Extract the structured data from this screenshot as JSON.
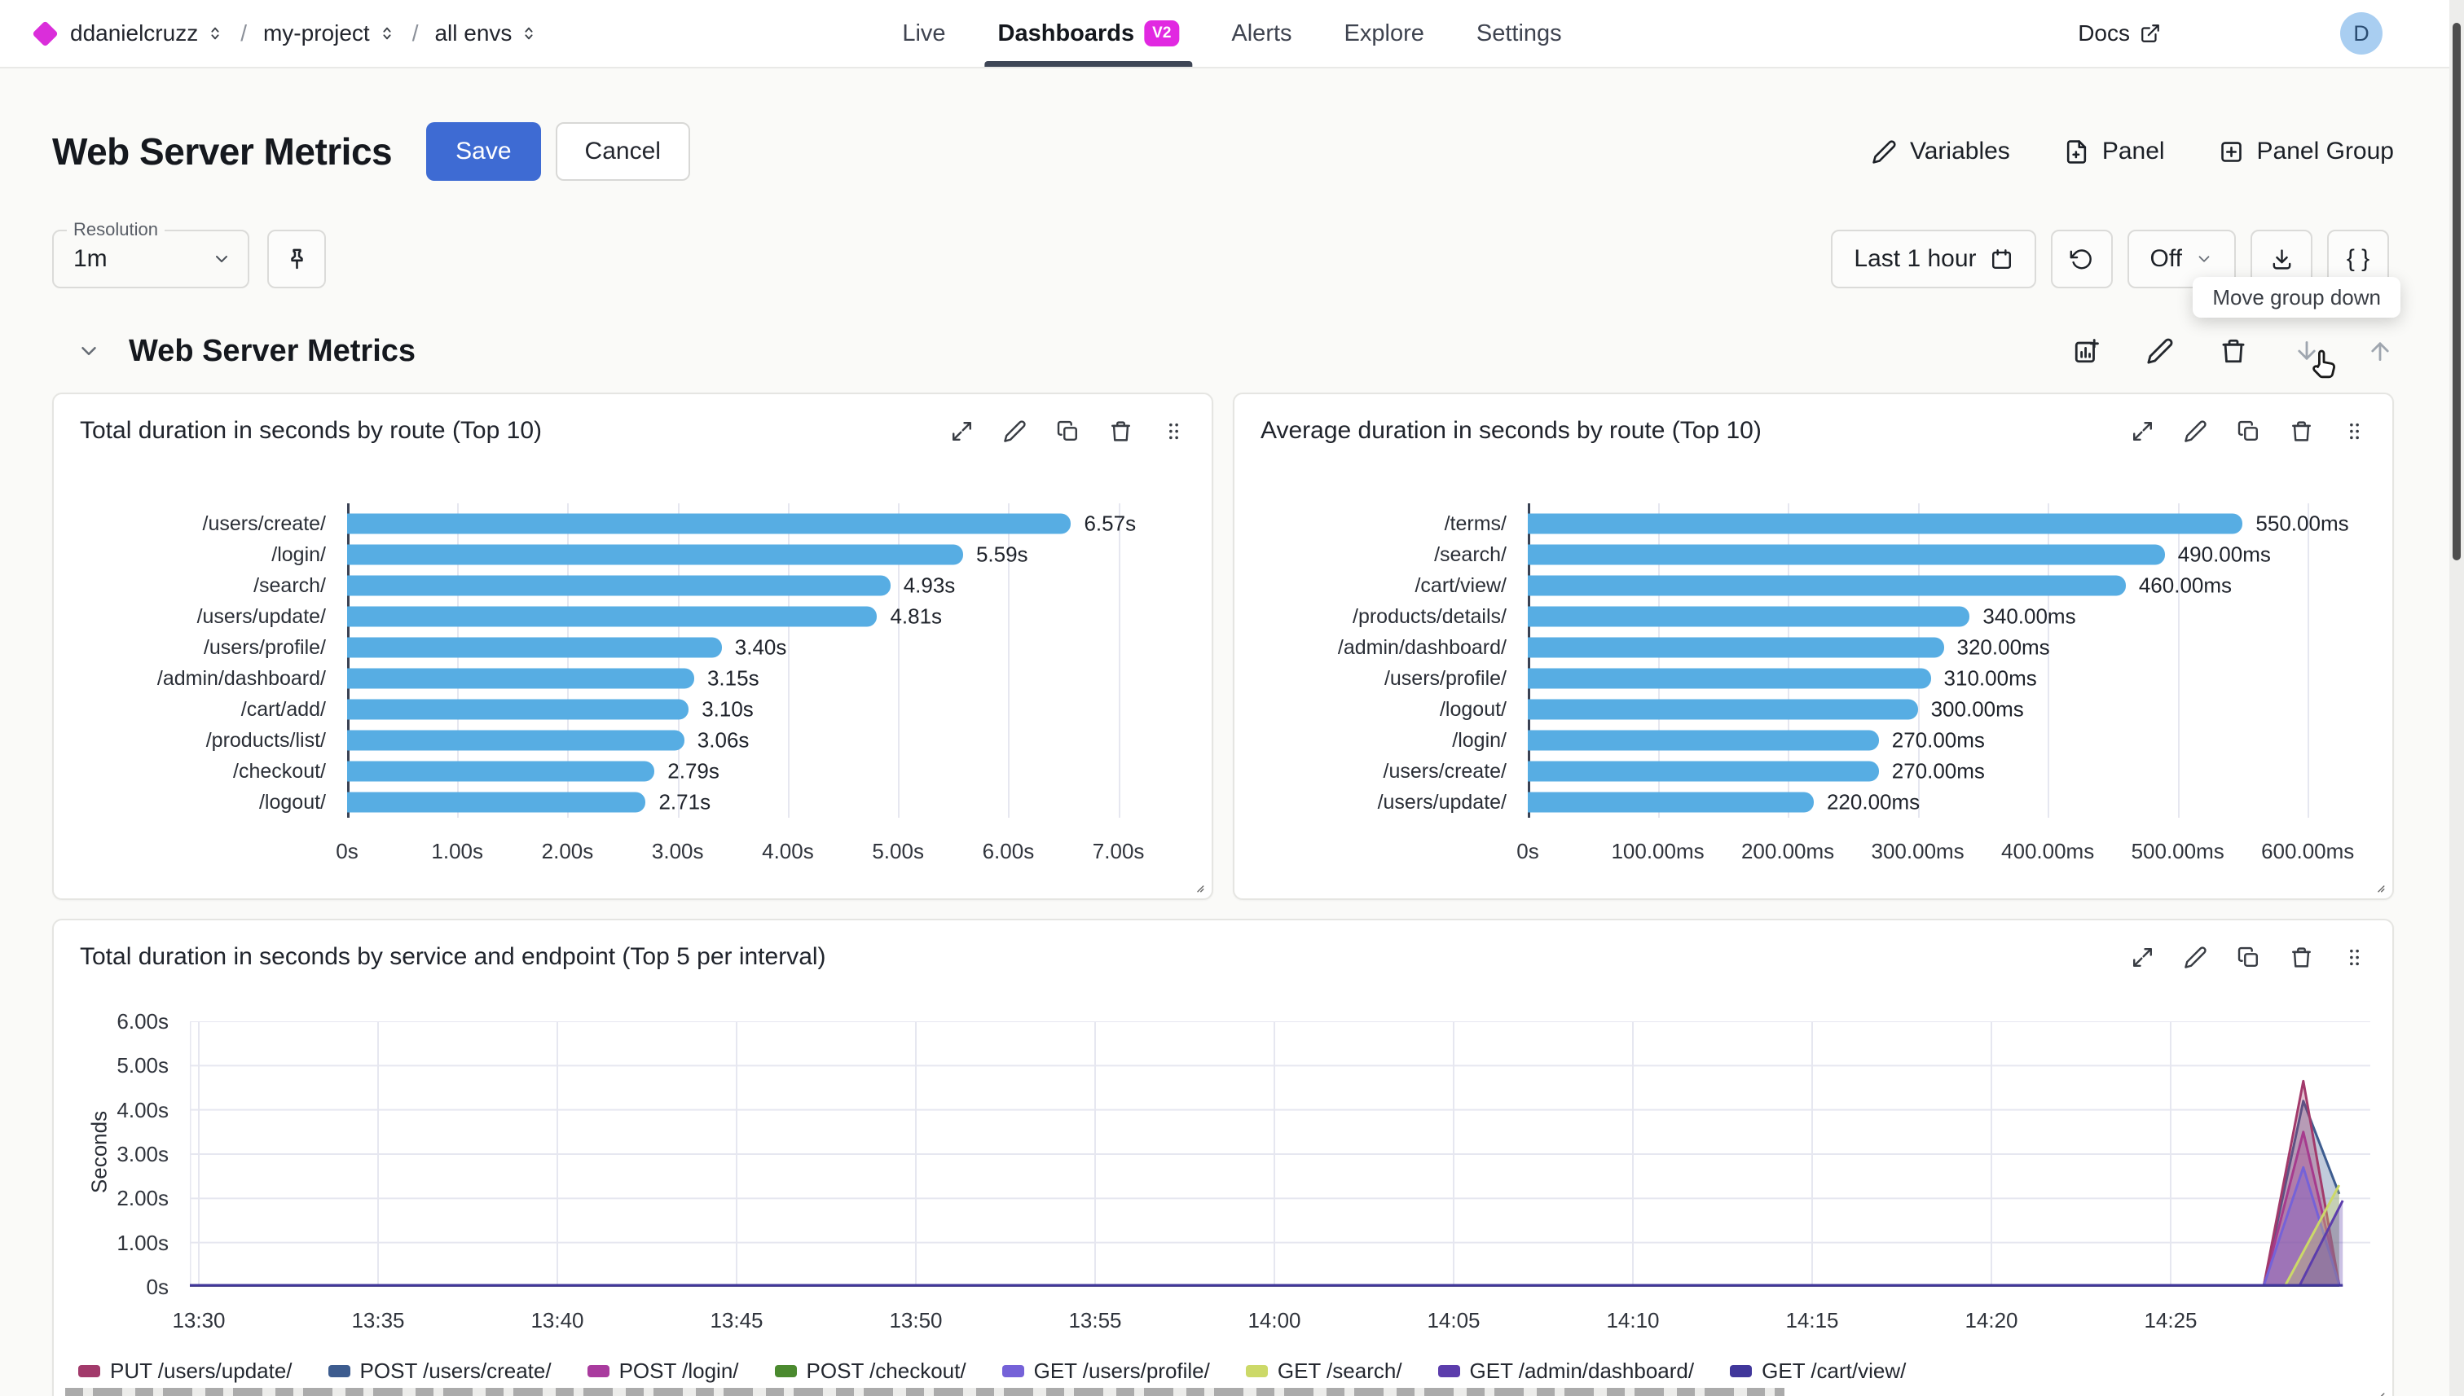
{
  "header": {
    "breadcrumbs": [
      {
        "label": "ddanielcruzz"
      },
      {
        "label": "my-project"
      },
      {
        "label": "all envs"
      }
    ],
    "nav": [
      {
        "label": "Live",
        "active": false
      },
      {
        "label": "Dashboards",
        "active": true,
        "badge": "V2"
      },
      {
        "label": "Alerts",
        "active": false
      },
      {
        "label": "Explore",
        "active": false
      },
      {
        "label": "Settings",
        "active": false
      }
    ],
    "docs_label": "Docs",
    "right_icons": [
      "slack",
      "github",
      "theme-sun",
      "share-link"
    ],
    "avatar_initial": "D"
  },
  "toolbar": {
    "title": "Web Server Metrics",
    "save_label": "Save",
    "cancel_label": "Cancel",
    "actions": [
      {
        "label": "Variables",
        "icon": "edit"
      },
      {
        "label": "Panel",
        "icon": "file-plus"
      },
      {
        "label": "Panel Group",
        "icon": "plus-square"
      }
    ]
  },
  "controls": {
    "resolution_label": "Resolution",
    "resolution_value": "1m",
    "pin_icon": "pin",
    "time_range": "Last 1 hour",
    "auto_refresh": "Off",
    "braces_label": "{ }",
    "tooltip": "Move group down"
  },
  "group": {
    "title": "Web Server Metrics",
    "icons": [
      "add-chart",
      "edit",
      "trash",
      "arrow-down",
      "arrow-up"
    ],
    "dim_icons": [
      "arrow-down",
      "arrow-up"
    ]
  },
  "panel_icons": [
    "expand",
    "edit",
    "copy",
    "trash",
    "drag"
  ],
  "panels": [
    {
      "title": "Total duration in seconds by route (Top 10)"
    },
    {
      "title": "Average duration in seconds by route (Top 10)"
    },
    {
      "title": "Total duration in seconds by service and endpoint (Top 5 per interval)"
    }
  ],
  "chart_data": [
    {
      "type": "bar",
      "orientation": "horizontal",
      "title": "Total duration in seconds by route (Top 10)",
      "categories": [
        "/users/create/",
        "/login/",
        "/search/",
        "/users/update/",
        "/users/profile/",
        "/admin/dashboard/",
        "/cart/add/",
        "/products/list/",
        "/checkout/",
        "/logout/"
      ],
      "values": [
        6.57,
        5.59,
        4.93,
        4.81,
        3.4,
        3.15,
        3.1,
        3.06,
        2.79,
        2.71
      ],
      "value_labels": [
        "6.57s",
        "5.59s",
        "4.93s",
        "4.81s",
        "3.40s",
        "3.15s",
        "3.10s",
        "3.06s",
        "2.79s",
        "2.71s"
      ],
      "xticks": [
        0,
        1,
        2,
        3,
        4,
        5,
        6,
        7
      ],
      "xtick_labels": [
        "0s",
        "1.00s",
        "2.00s",
        "3.00s",
        "4.00s",
        "5.00s",
        "6.00s",
        "7.00s"
      ],
      "xlim": [
        0,
        7.55
      ],
      "bar_color": "#57ADE3",
      "grid": true
    },
    {
      "type": "bar",
      "orientation": "horizontal",
      "title": "Average duration in seconds by route (Top 10)",
      "categories": [
        "/terms/",
        "/search/",
        "/cart/view/",
        "/products/details/",
        "/admin/dashboard/",
        "/users/profile/",
        "/logout/",
        "/login/",
        "/users/create/",
        "/users/update/"
      ],
      "values": [
        550,
        490,
        460,
        340,
        320,
        310,
        300,
        270,
        270,
        220
      ],
      "value_labels": [
        "550.00ms",
        "490.00ms",
        "460.00ms",
        "340.00ms",
        "320.00ms",
        "310.00ms",
        "300.00ms",
        "270.00ms",
        "270.00ms",
        "220.00ms"
      ],
      "xticks": [
        0,
        100,
        200,
        300,
        400,
        500,
        600
      ],
      "xtick_labels": [
        "0s",
        "100.00ms",
        "200.00ms",
        "300.00ms",
        "400.00ms",
        "500.00ms",
        "600.00ms"
      ],
      "xlim": [
        0,
        640
      ],
      "bar_color": "#57ADE3",
      "grid": true
    },
    {
      "type": "area",
      "title": "Total duration in seconds by service and endpoint (Top 5 per interval)",
      "ylabel": "Seconds",
      "yticks": [
        0,
        1,
        2,
        3,
        4,
        5,
        6
      ],
      "ytick_labels": [
        "0s",
        "1.00s",
        "2.00s",
        "3.00s",
        "4.00s",
        "5.00s",
        "6.00s"
      ],
      "ylim": [
        0,
        6
      ],
      "xticks_min": [
        0,
        5,
        10,
        15,
        20,
        25,
        30,
        35,
        40,
        45,
        50,
        55
      ],
      "xtick_labels": [
        "13:30",
        "13:35",
        "13:40",
        "13:45",
        "13:50",
        "13:55",
        "14:00",
        "14:05",
        "14:10",
        "14:15",
        "14:20",
        "14:25"
      ],
      "xlim_min": [
        -0.25,
        60.6
      ],
      "grid": true,
      "legend_position": "bottom",
      "series": [
        {
          "name": "PUT /users/update/",
          "color": "#A23A6B",
          "points": [
            [
              -0.25,
              0
            ],
            [
              57.6,
              0
            ],
            [
              58.7,
              4.65
            ],
            [
              59.7,
              0
            ]
          ]
        },
        {
          "name": "POST /users/create/",
          "color": "#3D5C8F",
          "points": [
            [
              -0.25,
              0
            ],
            [
              57.6,
              0
            ],
            [
              58.7,
              4.2
            ],
            [
              59.7,
              2.1
            ]
          ]
        },
        {
          "name": "POST /login/",
          "color": "#A93B9E",
          "points": [
            [
              -0.25,
              0
            ],
            [
              57.6,
              0
            ],
            [
              58.7,
              3.5
            ],
            [
              59.7,
              0.05
            ]
          ]
        },
        {
          "name": "POST /checkout/",
          "color": "#4B8A2F",
          "points": [
            [
              -0.25,
              0
            ],
            [
              59.7,
              0
            ]
          ]
        },
        {
          "name": "GET /users/profile/",
          "color": "#7562D8",
          "points": [
            [
              -0.25,
              0
            ],
            [
              57.6,
              0
            ],
            [
              58.7,
              2.7
            ],
            [
              59.7,
              0.05
            ]
          ]
        },
        {
          "name": "GET /search/",
          "color": "#CCD968",
          "points": [
            [
              -0.25,
              0
            ],
            [
              58.2,
              0
            ],
            [
              59.7,
              2.3
            ]
          ]
        },
        {
          "name": "GET /admin/dashboard/",
          "color": "#5C3DAC",
          "points": [
            [
              -0.25,
              0
            ],
            [
              58.6,
              0
            ],
            [
              59.8,
              1.95
            ]
          ]
        },
        {
          "name": "GET /cart/view/",
          "color": "#41379B",
          "points": [
            [
              -0.25,
              0
            ],
            [
              59.8,
              0
            ]
          ]
        }
      ]
    }
  ]
}
